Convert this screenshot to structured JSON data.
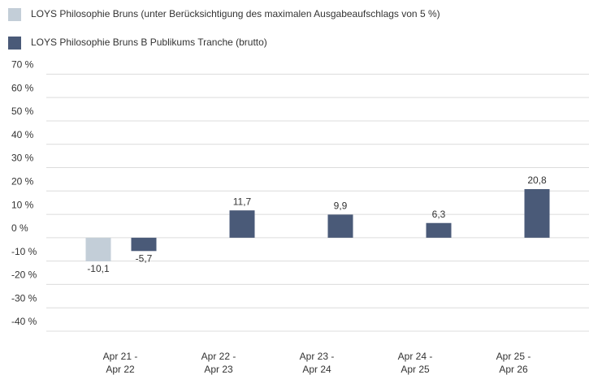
{
  "chart_data": {
    "type": "bar",
    "categories": [
      [
        "Apr 21 -",
        "Apr 22"
      ],
      [
        "Apr 22 -",
        "Apr 23"
      ],
      [
        "Apr 23 -",
        "Apr 24"
      ],
      [
        "Apr 24 -",
        "Apr 25"
      ],
      [
        "Apr 25 -",
        "Apr 26"
      ]
    ],
    "series": [
      {
        "name": "LOYS Philosophie Bruns (unter Berücksichtigung des maximalen Ausgabeaufschlags von 5 %)",
        "color": "#c3ced8",
        "values": [
          -10.1,
          null,
          null,
          null,
          null
        ],
        "value_labels": [
          "-10,1",
          null,
          null,
          null,
          null
        ]
      },
      {
        "name": "LOYS Philosophie Bruns B Publikums Tranche (brutto)",
        "color": "#4a5a78",
        "values": [
          -5.7,
          11.7,
          9.9,
          6.3,
          20.8
        ],
        "value_labels": [
          "-5,7",
          "11,7",
          "9,9",
          "6,3",
          "20,8"
        ]
      }
    ],
    "ylim": [
      -40,
      70
    ],
    "yticks": [
      {
        "value": 70,
        "label": "70 %"
      },
      {
        "value": 60,
        "label": "60 %"
      },
      {
        "value": 50,
        "label": "50 %"
      },
      {
        "value": 40,
        "label": "40 %"
      },
      {
        "value": 30,
        "label": "30 %"
      },
      {
        "value": 20,
        "label": "20 %"
      },
      {
        "value": 10,
        "label": "10 %"
      },
      {
        "value": 0,
        "label": "0 %"
      },
      {
        "value": -10,
        "label": "-10 %"
      },
      {
        "value": -20,
        "label": "-20 %"
      },
      {
        "value": -30,
        "label": "-30 %"
      },
      {
        "value": -40,
        "label": "-40 %"
      }
    ],
    "grid": true
  }
}
